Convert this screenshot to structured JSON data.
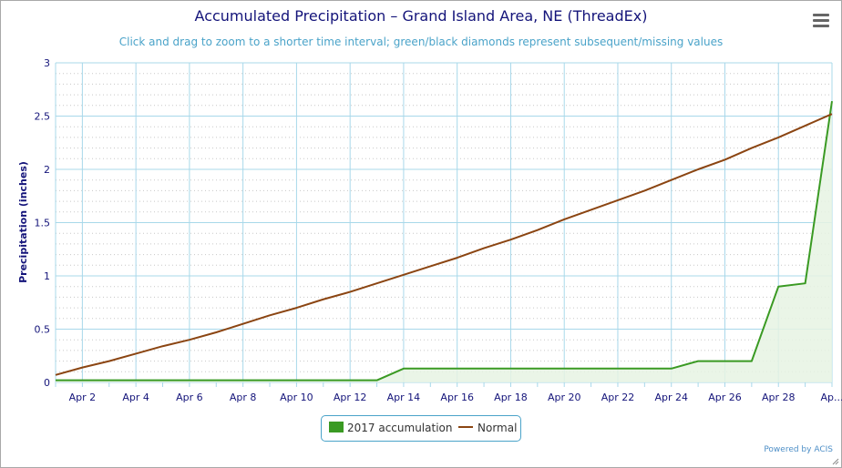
{
  "header": {
    "title": "Accumulated Precipitation – Grand Island Area, NE (ThreadEx)",
    "subtitle": "Click and drag to zoom to a shorter time interval; green/black diamonds represent subsequent/missing values"
  },
  "menu_icon": "hamburger-menu-icon",
  "credit": "Powered by ACIS",
  "colors": {
    "accumulation": "#3a9a23",
    "accumulation_fill": "#e6f3e3",
    "normal": "#8b4512",
    "grid": "#a8d8ea",
    "minor_grid": "#c8c8c8",
    "axis_text": "#14147a"
  },
  "chart_data": {
    "type": "line",
    "ylabel": "Precipitation (inches)",
    "ylim": [
      0,
      3
    ],
    "yticks": [
      "0",
      "0.5",
      "1",
      "1.5",
      "2",
      "2.5",
      "3"
    ],
    "xlabels": [
      "Apr 2",
      "Apr 4",
      "Apr 6",
      "Apr 8",
      "Apr 10",
      "Apr 12",
      "Apr 14",
      "Apr 16",
      "Apr 18",
      "Apr 20",
      "Apr 22",
      "Apr 24",
      "Apr 26",
      "Apr 28",
      "Ap..."
    ],
    "x": [
      "Apr 1",
      "Apr 2",
      "Apr 3",
      "Apr 4",
      "Apr 5",
      "Apr 6",
      "Apr 7",
      "Apr 8",
      "Apr 9",
      "Apr 10",
      "Apr 11",
      "Apr 12",
      "Apr 13",
      "Apr 14",
      "Apr 15",
      "Apr 16",
      "Apr 17",
      "Apr 18",
      "Apr 19",
      "Apr 20",
      "Apr 21",
      "Apr 22",
      "Apr 23",
      "Apr 24",
      "Apr 25",
      "Apr 26",
      "Apr 27",
      "Apr 28",
      "Apr 29",
      "Apr 30"
    ],
    "grid": true,
    "legend_position": "bottom-center",
    "series": [
      {
        "name": "2017 accumulation",
        "style": "area",
        "values": [
          0.02,
          0.02,
          0.02,
          0.02,
          0.02,
          0.02,
          0.02,
          0.02,
          0.02,
          0.02,
          0.02,
          0.02,
          0.02,
          0.13,
          0.13,
          0.13,
          0.13,
          0.13,
          0.13,
          0.13,
          0.13,
          0.13,
          0.13,
          0.13,
          0.2,
          0.2,
          0.2,
          0.9,
          0.93,
          2.64
        ]
      },
      {
        "name": "Normal",
        "style": "line",
        "values": [
          0.07,
          0.14,
          0.2,
          0.27,
          0.34,
          0.4,
          0.47,
          0.55,
          0.63,
          0.7,
          0.78,
          0.85,
          0.93,
          1.01,
          1.09,
          1.17,
          1.26,
          1.34,
          1.43,
          1.53,
          1.62,
          1.71,
          1.8,
          1.9,
          2.0,
          2.09,
          2.2,
          2.3,
          2.41,
          2.52
        ]
      }
    ]
  }
}
